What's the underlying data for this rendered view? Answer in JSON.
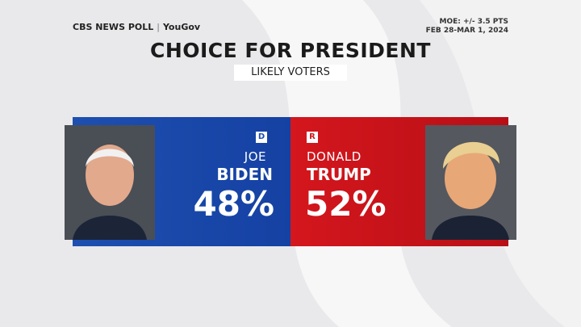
{
  "header": {
    "brand": "CBS NEWS POLL",
    "partner": "YouGov",
    "moe": "MOE: +/- 3.5 PTS",
    "dates": "FEB 28-MAR 1, 2024"
  },
  "title": "CHOICE FOR PRESIDENT",
  "subtitle": "LIKELY VOTERS",
  "candidates": [
    {
      "party": "D",
      "first": "JOE",
      "last": "BIDEN",
      "share": "48%"
    },
    {
      "party": "R",
      "first": "DONALD",
      "last": "TRUMP",
      "share": "52%"
    }
  ]
}
